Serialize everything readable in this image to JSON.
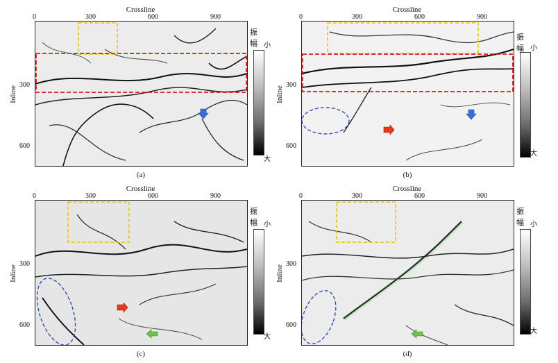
{
  "colorbar": {
    "title": "振幅",
    "low": "小",
    "high": "大"
  },
  "axes": {
    "x_title": "Crossline",
    "y_title": "Inline",
    "x_ticks": [
      "0",
      "300",
      "600",
      "900"
    ],
    "y_ticks": [
      "300",
      "600"
    ]
  },
  "panels": [
    {
      "caption": "(a)"
    },
    {
      "caption": "(b)"
    },
    {
      "caption": "(c)"
    },
    {
      "caption": "(d)"
    }
  ],
  "colors": {
    "highlight_yellow": "#e8c200",
    "highlight_red": "#d11d1d",
    "highlight_blue": "#2a4fb8",
    "arrow_blue": "#3b6fd6",
    "arrow_red": "#e23a1a",
    "arrow_green": "#6fbf4f"
  }
}
